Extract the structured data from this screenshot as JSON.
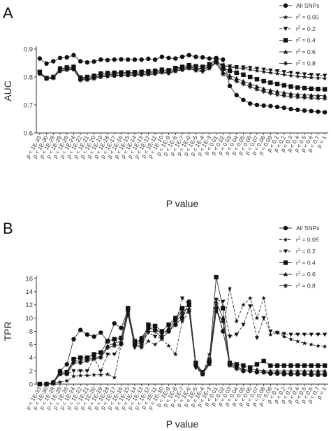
{
  "chart_data": [
    {
      "panel": "A",
      "type": "line",
      "xlabel": "P value",
      "ylabel": "AUC",
      "ylim": [
        0.6,
        0.9
      ],
      "yticks": [
        "0.6",
        "0.7",
        "0.8",
        "0.9"
      ],
      "grid": false,
      "legend_position": "top-right",
      "categories": [
        "p < 1E-33",
        "p < 1E-30",
        "p < 1E-29",
        "p < 1E-28",
        "p < 1E-26",
        "p < 1E-24",
        "p < 1E-22",
        "p < 1E-21",
        "p < 1E-20",
        "p < 1E-19",
        "p < 1E-18",
        "p < 1E-17",
        "p < 1E-16",
        "p < 1E-15",
        "p < 1E-14",
        "p < 1E-13",
        "p < 1E-12",
        "p < 1E-11",
        "p < 1E-10",
        "p < 1E-9",
        "p < 1E-8",
        "p < 1E-7",
        "p < 1E-6",
        "p < 1E-5",
        "p < 1E-4",
        "p < 1E-3",
        "p < 0.01",
        "p < 0.02",
        "p < 0.03",
        "p < 0.04",
        "p < 0.05",
        "p < 0.06",
        "p < 0.07",
        "p < 0.08",
        "p < 0.09",
        "p < 0.1",
        "p < 0.2",
        "p < 0.3",
        "p < 0.4",
        "p < 0.5",
        "p < 0.6",
        "p < 0.7",
        "p < 1"
      ],
      "series": [
        {
          "name": "All SNPs",
          "marker": "circle",
          "dash": "solid",
          "values": [
            0.866,
            0.848,
            0.856,
            0.868,
            0.87,
            0.878,
            0.856,
            0.852,
            0.855,
            0.862,
            0.86,
            0.862,
            0.863,
            0.862,
            0.862,
            0.862,
            0.865,
            0.862,
            0.872,
            0.868,
            0.866,
            0.872,
            0.878,
            0.872,
            0.87,
            0.866,
            0.868,
            0.862,
            0.768,
            0.735,
            0.718,
            0.705,
            0.7,
            0.698,
            0.696,
            0.693,
            0.69,
            0.685,
            0.683,
            0.68,
            0.678,
            0.676,
            0.674
          ]
        },
        {
          "name": "r2 = 0.05",
          "marker": "star",
          "dash": "solid",
          "values": [
            0.81,
            0.795,
            0.8,
            0.82,
            0.825,
            0.826,
            0.79,
            0.79,
            0.795,
            0.8,
            0.802,
            0.803,
            0.805,
            0.805,
            0.806,
            0.806,
            0.808,
            0.81,
            0.815,
            0.812,
            0.82,
            0.825,
            0.83,
            0.822,
            0.818,
            0.83,
            0.852,
            0.84,
            0.835,
            0.832,
            0.83,
            0.826,
            0.822,
            0.818,
            0.815,
            0.812,
            0.808,
            0.805,
            0.802,
            0.8,
            0.798,
            0.796,
            0.795
          ]
        },
        {
          "name": "r2 = 0.2",
          "marker": "triangle-down",
          "dash": "dashed",
          "values": [
            0.815,
            0.795,
            0.8,
            0.828,
            0.832,
            0.834,
            0.795,
            0.796,
            0.8,
            0.806,
            0.808,
            0.81,
            0.812,
            0.812,
            0.813,
            0.814,
            0.816,
            0.818,
            0.822,
            0.82,
            0.828,
            0.832,
            0.838,
            0.832,
            0.83,
            0.84,
            0.858,
            0.842,
            0.838,
            0.836,
            0.835,
            0.833,
            0.83,
            0.827,
            0.824,
            0.821,
            0.818,
            0.815,
            0.812,
            0.81,
            0.808,
            0.806,
            0.805
          ]
        },
        {
          "name": "r2 = 0.4",
          "marker": "square",
          "dash": "solid",
          "values": [
            0.818,
            0.796,
            0.8,
            0.83,
            0.834,
            0.836,
            0.798,
            0.8,
            0.804,
            0.812,
            0.814,
            0.815,
            0.816,
            0.816,
            0.817,
            0.818,
            0.82,
            0.822,
            0.826,
            0.824,
            0.832,
            0.836,
            0.842,
            0.838,
            0.836,
            0.845,
            0.862,
            0.83,
            0.822,
            0.815,
            0.808,
            0.8,
            0.792,
            0.785,
            0.78,
            0.775,
            0.77,
            0.766,
            0.762,
            0.76,
            0.758,
            0.757,
            0.756
          ]
        },
        {
          "name": "r2 = 0.6",
          "marker": "triangle-up",
          "dash": "solid",
          "values": [
            0.815,
            0.795,
            0.798,
            0.826,
            0.83,
            0.832,
            0.792,
            0.794,
            0.798,
            0.805,
            0.808,
            0.81,
            0.812,
            0.812,
            0.813,
            0.814,
            0.816,
            0.818,
            0.822,
            0.82,
            0.826,
            0.83,
            0.836,
            0.83,
            0.828,
            0.838,
            0.855,
            0.818,
            0.805,
            0.795,
            0.785,
            0.776,
            0.766,
            0.758,
            0.752,
            0.748,
            0.744,
            0.74,
            0.738,
            0.736,
            0.735,
            0.734,
            0.733
          ]
        },
        {
          "name": "r2 = 0.8",
          "marker": "asterisk",
          "dash": "solid",
          "values": [
            0.812,
            0.793,
            0.796,
            0.822,
            0.826,
            0.828,
            0.788,
            0.79,
            0.794,
            0.8,
            0.803,
            0.805,
            0.807,
            0.807,
            0.808,
            0.809,
            0.811,
            0.813,
            0.818,
            0.815,
            0.822,
            0.826,
            0.832,
            0.826,
            0.824,
            0.834,
            0.85,
            0.81,
            0.796,
            0.785,
            0.775,
            0.765,
            0.756,
            0.748,
            0.742,
            0.737,
            0.733,
            0.73,
            0.728,
            0.726,
            0.725,
            0.724,
            0.723
          ]
        }
      ]
    },
    {
      "panel": "B",
      "type": "line",
      "xlabel": "P value",
      "ylabel": "TPR",
      "ylim": [
        0,
        16
      ],
      "yticks": [
        "0",
        "2",
        "4",
        "6",
        "8",
        "10",
        "12",
        "14",
        "16"
      ],
      "grid": false,
      "legend_position": "top-right",
      "categories": [
        "p < 1E-33",
        "p < 1E-30",
        "p < 1E-29",
        "p < 1E-28",
        "p < 1E-26",
        "p < 1E-24",
        "p < 1E-22",
        "p < 1E-21",
        "p < 1E-20",
        "p < 1E-19",
        "p < 1E-18",
        "p < 1E-17",
        "p < 1E-16",
        "p < 1E-15",
        "p < 1E-14",
        "p < 1E-13",
        "p < 1E-12",
        "p < 1E-11",
        "p < 1E-10",
        "p < 1E-9",
        "p < 1E-8",
        "p < 1E-7",
        "p < 1E-6",
        "p < 1E-5",
        "p < 1E-4",
        "p < 1E-3",
        "p < 0.01",
        "p < 0.02",
        "p < 0.03",
        "p < 0.04",
        "p < 0.05",
        "p < 0.06",
        "p < 0.07",
        "p < 0.08",
        "p < 0.09",
        "p < 0.1",
        "p < 0.2",
        "p < 0.3",
        "p < 0.4",
        "p < 0.5",
        "p < 0.6",
        "p < 0.7",
        "p < 1"
      ],
      "series": [
        {
          "name": "All SNPs",
          "marker": "circle",
          "dash": "solid",
          "values": [
            0,
            0,
            0.3,
            2.0,
            3.0,
            6.8,
            8.2,
            7.5,
            7.2,
            7.8,
            6.5,
            9.2,
            8.5,
            11.2,
            6.0,
            7.0,
            8.5,
            8.2,
            7.8,
            8.0,
            9.0,
            10.0,
            12.5,
            3.0,
            1.5,
            3.5,
            11.5,
            8.0,
            3.0,
            2.8,
            2.0,
            2.0,
            1.8,
            1.8,
            1.6,
            1.6,
            1.5,
            1.5,
            1.5,
            1.5,
            1.4,
            1.4,
            1.4
          ]
        },
        {
          "name": "r2 = 0.05",
          "marker": "star",
          "dash": "dashed",
          "values": [
            0,
            0,
            0.2,
            0.3,
            0.5,
            1.2,
            1.3,
            1.3,
            1.4,
            1.4,
            1.5,
            1.0,
            6.0,
            11.5,
            6.0,
            5.5,
            6.5,
            6.0,
            6.8,
            5.8,
            4.5,
            9.5,
            11.0,
            2.5,
            1.6,
            4.5,
            12.0,
            8.0,
            14.5,
            9.5,
            12.0,
            13.0,
            10.0,
            13.0,
            7.5,
            7.8,
            7.2,
            6.8,
            6.5,
            6.2,
            6.0,
            5.8,
            5.7
          ]
        },
        {
          "name": "r2 = 0.2",
          "marker": "triangle-down",
          "dash": "dashed",
          "values": [
            0,
            0,
            0.2,
            1.5,
            1.5,
            2.0,
            2.0,
            2.0,
            4.0,
            2.0,
            4.5,
            4.5,
            6.0,
            10.8,
            5.5,
            6.5,
            7.8,
            7.2,
            7.0,
            8.0,
            9.0,
            13.0,
            12.0,
            2.5,
            1.5,
            3.8,
            12.8,
            12.5,
            7.2,
            7.5,
            9.0,
            11.8,
            7.0,
            10.0,
            8.0,
            7.8,
            7.6,
            7.5,
            7.5,
            7.5,
            7.5,
            7.5,
            7.5
          ]
        },
        {
          "name": "r2 = 0.4",
          "marker": "square",
          "dash": "solid",
          "values": [
            0,
            0,
            0.2,
            1.8,
            1.8,
            3.8,
            4.0,
            4.0,
            4.5,
            4.8,
            6.5,
            6.8,
            7.0,
            11.5,
            6.5,
            6.5,
            9.0,
            8.8,
            8.0,
            9.0,
            10.0,
            11.5,
            12.0,
            3.2,
            1.8,
            3.5,
            16.2,
            11.5,
            3.2,
            3.0,
            2.8,
            2.5,
            3.0,
            3.5,
            2.8,
            2.8,
            2.8,
            2.8,
            2.8,
            2.8,
            2.8,
            2.8,
            2.8
          ]
        },
        {
          "name": "r2 = 0.6",
          "marker": "triangle-up",
          "dash": "solid",
          "values": [
            0,
            0,
            0.2,
            1.6,
            1.6,
            3.5,
            3.5,
            3.8,
            4.0,
            4.2,
            5.8,
            6.2,
            6.5,
            11.0,
            6.2,
            6.2,
            8.5,
            8.5,
            7.5,
            8.5,
            9.8,
            11.0,
            11.5,
            3.0,
            1.6,
            3.2,
            12.5,
            10.0,
            3.0,
            2.5,
            2.3,
            2.2,
            2.2,
            2.0,
            2.0,
            2.0,
            2.0,
            2.0,
            2.0,
            2.0,
            2.0,
            2.0,
            2.0
          ]
        },
        {
          "name": "r2 = 0.8",
          "marker": "asterisk",
          "dash": "solid",
          "values": [
            0,
            0,
            0.2,
            1.5,
            1.5,
            3.2,
            3.2,
            3.5,
            3.8,
            4.0,
            5.5,
            5.8,
            6.0,
            10.5,
            5.8,
            5.8,
            8.0,
            8.0,
            7.0,
            8.0,
            9.5,
            10.5,
            11.0,
            2.8,
            1.5,
            3.0,
            11.0,
            9.5,
            2.8,
            2.3,
            2.0,
            2.0,
            1.8,
            1.8,
            1.7,
            1.7,
            1.7,
            1.6,
            1.6,
            1.6,
            1.6,
            1.6,
            1.6
          ]
        }
      ]
    }
  ]
}
